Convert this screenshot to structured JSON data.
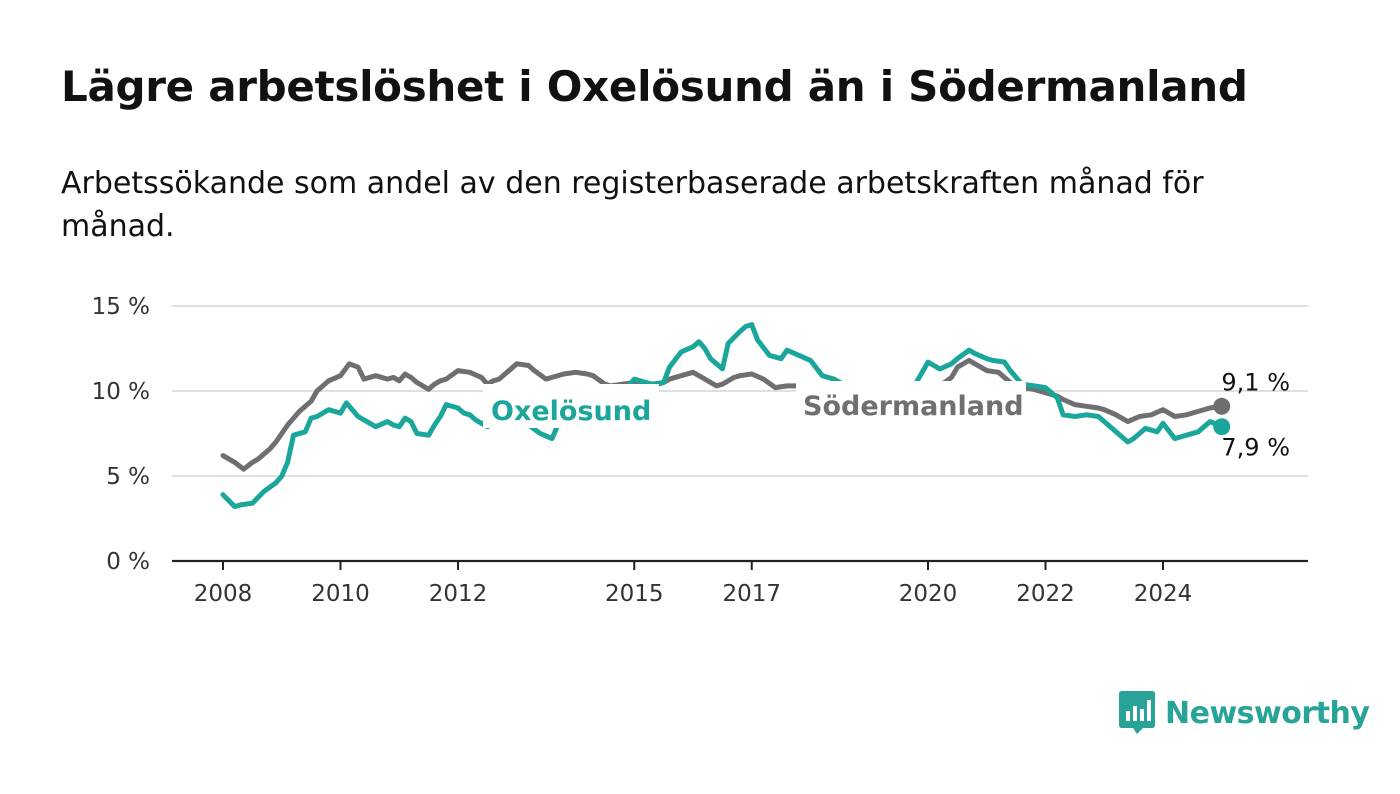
{
  "title": "Lägre arbetslöshet i Oxelösund än i Södermanland",
  "subtitle": "Arbetssökande som andel av den registerbaserade arbetskraften månad för månad.",
  "brand": {
    "name": "Newsworthy",
    "color": "#27a397",
    "icon": "bar-chart-speech-icon"
  },
  "chart_data": {
    "type": "line",
    "x_unit": "year",
    "xlim": [
      2008,
      2025.6
    ],
    "ylim": [
      0,
      15
    ],
    "y_ticks": [
      {
        "value": 0,
        "label": "0 %"
      },
      {
        "value": 5,
        "label": "5 %"
      },
      {
        "value": 10,
        "label": "10 %"
      },
      {
        "value": 15,
        "label": "15 %"
      }
    ],
    "x_ticks": [
      {
        "value": 2008,
        "label": "2008"
      },
      {
        "value": 2010,
        "label": "2010"
      },
      {
        "value": 2012,
        "label": "2012"
      },
      {
        "value": 2015,
        "label": "2015"
      },
      {
        "value": 2017,
        "label": "2017"
      },
      {
        "value": 2020,
        "label": "2020"
      },
      {
        "value": 2022,
        "label": "2022"
      },
      {
        "value": 2024,
        "label": "2024"
      }
    ],
    "grid": "horizontal",
    "legend": "inline labels",
    "series": [
      {
        "name": "Södermanland",
        "color": "#6e6e73",
        "end_label": "9,1 %",
        "x": [
          2008.0,
          2008.2,
          2008.35,
          2008.5,
          2008.6,
          2008.8,
          2008.9,
          2009.1,
          2009.3,
          2009.5,
          2009.6,
          2009.8,
          2010.0,
          2010.15,
          2010.3,
          2010.4,
          2010.6,
          2010.8,
          2010.9,
          2011.0,
          2011.1,
          2011.2,
          2011.3,
          2011.5,
          2011.6,
          2011.7,
          2011.8,
          2012.0,
          2012.2,
          2012.4,
          2012.5,
          2012.6,
          2012.7,
          2012.8,
          2013.0,
          2013.2,
          2013.3,
          2013.5,
          2013.6,
          2013.8,
          2014.0,
          2014.2,
          2014.3,
          2014.5,
          2014.6,
          2014.8,
          2015.0,
          2015.2,
          2015.3,
          2015.5,
          2015.6,
          2015.8,
          2016.0,
          2016.2,
          2016.4,
          2016.5,
          2016.7,
          2016.8,
          2017.0,
          2017.2,
          2017.4,
          2017.6,
          2017.8,
          2018.0,
          2018.2,
          2018.4,
          2018.6,
          2018.8,
          2019.0,
          2019.2,
          2019.4,
          2019.6,
          2019.8,
          2020.0,
          2020.2,
          2020.4,
          2020.5,
          2020.7,
          2020.8,
          2021.0,
          2021.2,
          2021.4,
          2021.6,
          2021.8,
          2022.0,
          2022.2,
          2022.3,
          2022.5,
          2022.7,
          2022.9,
          2023.0,
          2023.2,
          2023.4,
          2023.6,
          2023.8,
          2024.0,
          2024.2,
          2024.4,
          2024.6,
          2024.8,
          2025.0
        ],
        "y": [
          6.2,
          5.8,
          5.4,
          5.8,
          6.0,
          6.6,
          7.0,
          8.0,
          8.8,
          9.4,
          10.0,
          10.6,
          10.9,
          11.6,
          11.4,
          10.7,
          10.9,
          10.7,
          10.8,
          10.6,
          11.0,
          10.8,
          10.5,
          10.1,
          10.4,
          10.6,
          10.7,
          11.2,
          11.1,
          10.8,
          10.4,
          10.6,
          10.7,
          11.0,
          11.6,
          11.5,
          11.2,
          10.7,
          10.8,
          11.0,
          11.1,
          11.0,
          10.9,
          10.4,
          10.3,
          10.4,
          10.5,
          10.4,
          10.3,
          10.5,
          10.7,
          10.9,
          11.1,
          10.7,
          10.3,
          10.4,
          10.8,
          10.9,
          11.0,
          10.7,
          10.2,
          10.3,
          10.3,
          10.2,
          10.0,
          9.8,
          9.8,
          9.8,
          9.8,
          9.7,
          9.6,
          9.6,
          9.7,
          10.2,
          10.3,
          10.8,
          11.4,
          11.8,
          11.6,
          11.2,
          11.1,
          10.5,
          10.2,
          10.1,
          9.9,
          9.7,
          9.5,
          9.2,
          9.1,
          9.0,
          8.9,
          8.6,
          8.2,
          8.5,
          8.6,
          8.9,
          8.5,
          8.6,
          8.8,
          9.0,
          9.1
        ]
      },
      {
        "name": "Oxelösund",
        "color": "#1aa69a",
        "end_label": "7,9 %",
        "x": [
          2008.0,
          2008.2,
          2008.3,
          2008.5,
          2008.7,
          2008.9,
          2009.0,
          2009.1,
          2009.2,
          2009.4,
          2009.5,
          2009.6,
          2009.8,
          2010.0,
          2010.1,
          2010.3,
          2010.5,
          2010.6,
          2010.8,
          2010.9,
          2011.0,
          2011.1,
          2011.2,
          2011.3,
          2011.5,
          2011.6,
          2011.7,
          2011.8,
          2012.0,
          2012.1,
          2012.2,
          2012.3,
          2012.4,
          2012.5,
          2012.6,
          2012.8,
          2013.0,
          2013.2,
          2013.4,
          2013.6,
          2013.7,
          2013.9,
          2014.0,
          2014.2,
          2014.4,
          2014.6,
          2014.8,
          2015.0,
          2015.2,
          2015.3,
          2015.5,
          2015.6,
          2015.8,
          2016.0,
          2016.1,
          2016.2,
          2016.3,
          2016.5,
          2016.6,
          2016.8,
          2016.9,
          2017.0,
          2017.1,
          2017.3,
          2017.5,
          2017.6,
          2017.8,
          2018.0,
          2018.2,
          2018.4,
          2018.5,
          2018.7,
          2018.8,
          2019.0,
          2019.2,
          2019.4,
          2019.6,
          2019.8,
          2020.0,
          2020.2,
          2020.4,
          2020.5,
          2020.7,
          2020.8,
          2021.0,
          2021.1,
          2021.3,
          2021.4,
          2021.6,
          2021.8,
          2022.0,
          2022.2,
          2022.3,
          2022.5,
          2022.7,
          2022.9,
          2023.0,
          2023.2,
          2023.4,
          2023.5,
          2023.7,
          2023.9,
          2024.0,
          2024.2,
          2024.4,
          2024.6,
          2024.8,
          2025.0
        ],
        "y": [
          3.9,
          3.2,
          3.3,
          3.4,
          4.1,
          4.6,
          5.0,
          5.8,
          7.4,
          7.6,
          8.4,
          8.5,
          8.9,
          8.7,
          9.3,
          8.5,
          8.1,
          7.9,
          8.2,
          8.0,
          7.9,
          8.4,
          8.2,
          7.5,
          7.4,
          8.0,
          8.5,
          9.2,
          9.0,
          8.7,
          8.6,
          8.3,
          8.1,
          7.9,
          8.3,
          8.6,
          8.2,
          8.0,
          7.5,
          7.2,
          8.0,
          8.6,
          8.9,
          9.2,
          9.4,
          9.6,
          9.9,
          10.7,
          10.5,
          10.4,
          10.5,
          11.4,
          12.3,
          12.6,
          12.9,
          12.5,
          11.9,
          11.3,
          12.8,
          13.5,
          13.8,
          13.9,
          13.0,
          12.1,
          11.9,
          12.4,
          12.1,
          11.8,
          10.9,
          10.7,
          10.5,
          10.1,
          9.9,
          9.7,
          9.6,
          9.6,
          9.9,
          10.5,
          11.7,
          11.3,
          11.6,
          11.9,
          12.4,
          12.2,
          11.9,
          11.8,
          11.7,
          11.2,
          10.4,
          10.3,
          10.2,
          9.6,
          8.6,
          8.5,
          8.6,
          8.5,
          8.2,
          7.6,
          7.0,
          7.2,
          7.8,
          7.6,
          8.1,
          7.2,
          7.4,
          7.6,
          8.2,
          7.9
        ]
      }
    ]
  }
}
